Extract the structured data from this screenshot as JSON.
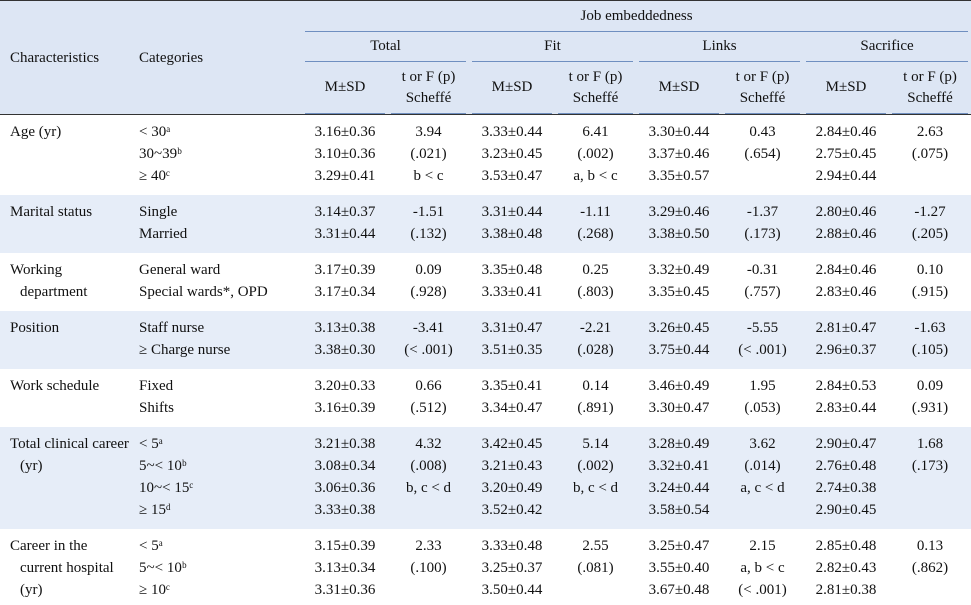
{
  "table": {
    "header": {
      "group": "Job embeddedness",
      "col1": "Characteristics",
      "col2": "Categories",
      "subgroups": [
        "Total",
        "Fit",
        "Links",
        "Sacrifice"
      ],
      "msd": "M±SD",
      "test": "t or F (p)",
      "scheffe": "Scheffé"
    },
    "rows": [
      {
        "label": "Age (yr)",
        "categories": [
          "< 30ᵃ",
          "30~39ᵇ",
          "≥ 40ᶜ"
        ],
        "groups": [
          {
            "msd": [
              "3.16±0.36",
              "3.10±0.36",
              "3.29±0.41"
            ],
            "test": [
              "3.94",
              "(.021)",
              "b < c"
            ]
          },
          {
            "msd": [
              "3.33±0.44",
              "3.23±0.45",
              "3.53±0.47"
            ],
            "test": [
              "6.41",
              "(.002)",
              "a, b < c"
            ]
          },
          {
            "msd": [
              "3.30±0.44",
              "3.37±0.46",
              "3.35±0.57"
            ],
            "test": [
              "0.43",
              "(.654)"
            ]
          },
          {
            "msd": [
              "2.84±0.46",
              "2.75±0.45",
              "2.94±0.44"
            ],
            "test": [
              "2.63",
              "(.075)"
            ]
          }
        ]
      },
      {
        "label": "Marital status",
        "categories": [
          "Single",
          "Married"
        ],
        "groups": [
          {
            "msd": [
              "3.14±0.37",
              "3.31±0.44"
            ],
            "test": [
              "-1.51",
              "(.132)"
            ]
          },
          {
            "msd": [
              "3.31±0.44",
              "3.38±0.48"
            ],
            "test": [
              "-1.11",
              "(.268)"
            ]
          },
          {
            "msd": [
              "3.29±0.46",
              "3.38±0.50"
            ],
            "test": [
              "-1.37",
              "(.173)"
            ]
          },
          {
            "msd": [
              "2.80±0.46",
              "2.88±0.46"
            ],
            "test": [
              "-1.27",
              "(.205)"
            ]
          }
        ]
      },
      {
        "label": "Working department",
        "categories": [
          "General ward",
          "Special wards*, OPD"
        ],
        "groups": [
          {
            "msd": [
              "3.17±0.39",
              "3.17±0.34"
            ],
            "test": [
              "0.09",
              "(.928)"
            ]
          },
          {
            "msd": [
              "3.35±0.48",
              "3.33±0.41"
            ],
            "test": [
              "0.25",
              "(.803)"
            ]
          },
          {
            "msd": [
              "3.32±0.49",
              "3.35±0.45"
            ],
            "test": [
              "-0.31",
              "(.757)"
            ]
          },
          {
            "msd": [
              "2.84±0.46",
              "2.83±0.46"
            ],
            "test": [
              "0.10",
              "(.915)"
            ]
          }
        ]
      },
      {
        "label": "Position",
        "categories": [
          "Staff nurse",
          "≥ Charge nurse"
        ],
        "groups": [
          {
            "msd": [
              "3.13±0.38",
              "3.38±0.30"
            ],
            "test": [
              "-3.41",
              "(< .001)"
            ]
          },
          {
            "msd": [
              "3.31±0.47",
              "3.51±0.35"
            ],
            "test": [
              "-2.21",
              "(.028)"
            ]
          },
          {
            "msd": [
              "3.26±0.45",
              "3.75±0.44"
            ],
            "test": [
              "-5.55",
              "(< .001)"
            ]
          },
          {
            "msd": [
              "2.81±0.47",
              "2.96±0.37"
            ],
            "test": [
              "-1.63",
              "(.105)"
            ]
          }
        ]
      },
      {
        "label": "Work schedule",
        "categories": [
          "Fixed",
          "Shifts"
        ],
        "groups": [
          {
            "msd": [
              "3.20±0.33",
              "3.16±0.39"
            ],
            "test": [
              "0.66",
              "(.512)"
            ]
          },
          {
            "msd": [
              "3.35±0.41",
              "3.34±0.47"
            ],
            "test": [
              "0.14",
              "(.891)"
            ]
          },
          {
            "msd": [
              "3.46±0.49",
              "3.30±0.47"
            ],
            "test": [
              "1.95",
              "(.053)"
            ]
          },
          {
            "msd": [
              "2.84±0.53",
              "2.83±0.44"
            ],
            "test": [
              "0.09",
              "(.931)"
            ]
          }
        ]
      },
      {
        "label": "Total clinical career (yr)",
        "categories": [
          "< 5ᵃ",
          "5~< 10ᵇ",
          "10~< 15ᶜ",
          "≥ 15ᵈ"
        ],
        "groups": [
          {
            "msd": [
              "3.21±0.38",
              "3.08±0.34",
              "3.06±0.36",
              "3.33±0.38"
            ],
            "test": [
              "4.32",
              "(.008)",
              "b, c < d"
            ]
          },
          {
            "msd": [
              "3.42±0.45",
              "3.21±0.43",
              "3.20±0.49",
              "3.52±0.42"
            ],
            "test": [
              "5.14",
              "(.002)",
              "b, c < d"
            ]
          },
          {
            "msd": [
              "3.28±0.49",
              "3.32±0.41",
              "3.24±0.44",
              "3.58±0.54"
            ],
            "test": [
              "3.62",
              "(.014)",
              "a, c < d"
            ]
          },
          {
            "msd": [
              "2.90±0.47",
              "2.76±0.48",
              "2.74±0.38",
              "2.90±0.45"
            ],
            "test": [
              "1.68",
              "(.173)"
            ]
          }
        ]
      },
      {
        "label": "Career in the current hospital (yr)",
        "categories": [
          "< 5ᵃ",
          "5~< 10ᵇ",
          "≥ 10ᶜ"
        ],
        "groups": [
          {
            "msd": [
              "3.15±0.39",
              "3.13±0.34",
              "3.31±0.36"
            ],
            "test": [
              "2.33",
              "(.100)"
            ]
          },
          {
            "msd": [
              "3.33±0.48",
              "3.25±0.37",
              "3.50±0.44"
            ],
            "test": [
              "2.55",
              "(.081)"
            ]
          },
          {
            "msd": [
              "3.25±0.47",
              "3.55±0.40",
              "3.67±0.48"
            ],
            "test": [
              "2.15",
              "a, b < c",
              "(< .001)"
            ]
          },
          {
            "msd": [
              "2.85±0.48",
              "2.82±0.43",
              "2.81±0.38"
            ],
            "test": [
              "0.13",
              "(.862)"
            ]
          }
        ]
      }
    ]
  }
}
